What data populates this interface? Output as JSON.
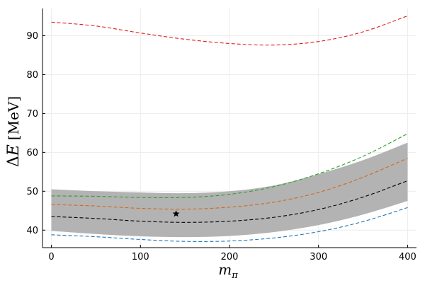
{
  "chart_data": {
    "type": "line",
    "xlim": [
      -10,
      410
    ],
    "ylim": [
      35.5,
      97
    ],
    "grid": true,
    "legend": "none",
    "x_ticks": [
      0,
      100,
      200,
      300,
      400
    ],
    "y_ticks": [
      40,
      50,
      60,
      70,
      80,
      90
    ],
    "x_tick_labels": [
      "0",
      "100",
      "200",
      "300",
      "400"
    ],
    "y_tick_labels": [
      "40",
      "50",
      "60",
      "70",
      "80",
      "90"
    ],
    "xlabel": {
      "base": "m",
      "sub": "π"
    },
    "ylabel": {
      "delta": "Δ",
      "var": "E",
      "unit": "[MeV]"
    },
    "x": [
      0,
      50,
      100,
      150,
      200,
      250,
      300,
      350,
      400
    ],
    "band": {
      "color": "#b3b3b3",
      "lower": [
        39.8,
        39.0,
        38.4,
        38.2,
        38.5,
        39.5,
        41.3,
        44.0,
        47.5
      ],
      "upper": [
        50.5,
        50.0,
        49.7,
        49.5,
        50.0,
        51.5,
        54.4,
        58.0,
        62.5
      ]
    },
    "series": [
      {
        "color": "#1f77b4",
        "values": [
          38.8,
          38.3,
          37.6,
          37.1,
          37.2,
          38.0,
          39.6,
          42.2,
          45.8
        ]
      },
      {
        "color": "#000000",
        "values": [
          43.5,
          43.0,
          42.3,
          42.0,
          42.3,
          43.3,
          45.3,
          48.5,
          52.7
        ]
      },
      {
        "color": "#d2691e",
        "values": [
          46.6,
          46.2,
          45.6,
          45.4,
          45.9,
          47.2,
          49.7,
          53.6,
          58.5
        ]
      },
      {
        "color": "#2ca02c",
        "values": [
          48.8,
          48.7,
          48.4,
          48.4,
          49.2,
          51.2,
          54.5,
          59.0,
          64.8
        ]
      },
      {
        "color": "#e31a1c",
        "values": [
          93.5,
          92.5,
          90.7,
          89.1,
          88.0,
          87.6,
          88.5,
          91.0,
          95.1
        ]
      }
    ],
    "marker": {
      "symbol": "star",
      "x": 140,
      "y": 44.2,
      "color": "#000000"
    }
  }
}
